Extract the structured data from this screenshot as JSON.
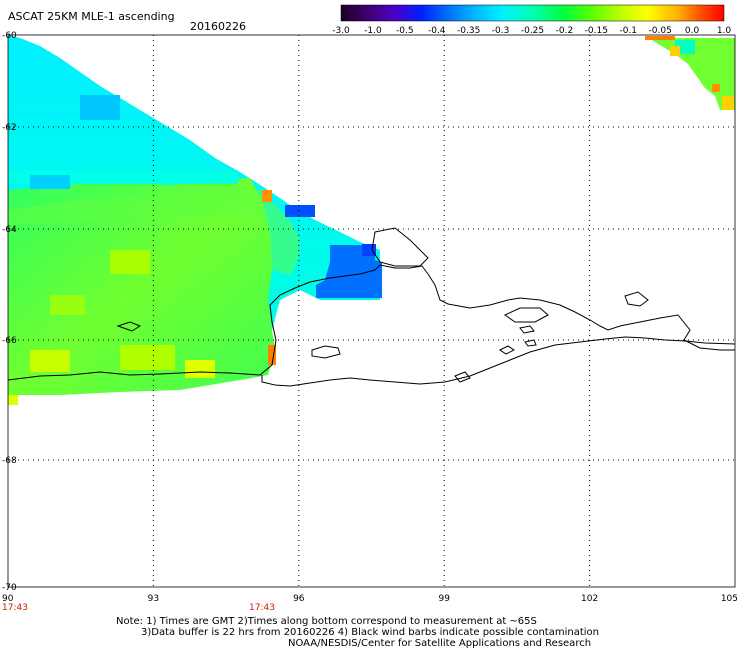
{
  "header": {
    "title": "ASCAT 25KM MLE-1 ascending",
    "date": "20160226"
  },
  "colorbar": {
    "labels": [
      "-3.0",
      "-1.0",
      "-0.5",
      "-0.4",
      "-0.35",
      "-0.3",
      "-0.25",
      "-0.2",
      "-0.15",
      "-0.1",
      "-0.05",
      "0.0",
      "1.0"
    ],
    "colors": [
      "#2a0030",
      "#5a0090",
      "#2a2ad0",
      "#0060ff",
      "#0098ff",
      "#00d8ff",
      "#00ffe8",
      "#00ff98",
      "#30ff30",
      "#90ff00",
      "#e8ff00",
      "#ffd000",
      "#ff7000",
      "#ff1000"
    ]
  },
  "axes": {
    "lon_labels": [
      "90",
      "93",
      "96",
      "99",
      "102",
      "105"
    ],
    "lat_labels": [
      "-60",
      "-62",
      "-64",
      "-66",
      "-68",
      "-70"
    ],
    "time_labels": [
      "17:43",
      "17:43"
    ]
  },
  "notes": {
    "line1": "Note: 1) Times are GMT 2)Times along bottom correspond to measurement at ~65S",
    "line2": "3)Data buffer is 22 hrs from 20160226 4) Black wind barbs indicate possible contamination",
    "line3": "NOAA/NESDIS/Center for Satellite Applications and Research"
  }
}
